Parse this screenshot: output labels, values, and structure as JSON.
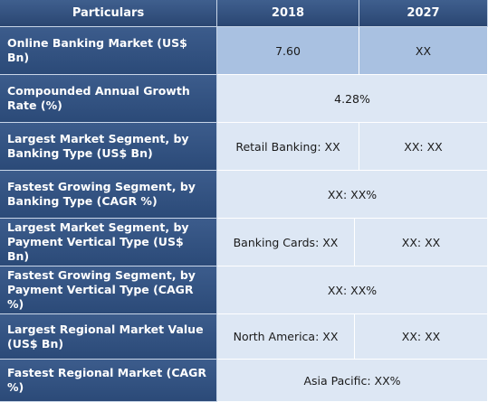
{
  "table": {
    "headers": [
      "Particulars",
      "2018",
      "2027"
    ],
    "rows": [
      {
        "label": "Online Banking Market (US$ Bn)",
        "v2018": "7.60",
        "v2027": "XX"
      },
      {
        "label": "Compounded Annual Growth Rate (%)",
        "merged": "4.28%"
      },
      {
        "label": "Largest Market Segment, by Banking Type (US$ Bn)",
        "v2018": "Retail Banking: XX",
        "v2027": "XX: XX"
      },
      {
        "label": "Fastest Growing Segment, by Banking Type (CAGR %)",
        "merged": "XX: XX%"
      },
      {
        "label": "Largest Market Segment, by Payment Vertical Type (US$ Bn)",
        "v2018": "Banking Cards: XX",
        "v2027": "XX: XX"
      },
      {
        "label": "Fastest Growing Segment, by Payment Vertical Type (CAGR %)",
        "merged": "XX: XX%"
      },
      {
        "label": "Largest Regional Market Value (US$ Bn)",
        "v2018": "North America: XX",
        "v2027": "XX: XX"
      },
      {
        "label": "Fastest Regional Market (CAGR %)",
        "merged": "Asia Pacific: XX%"
      }
    ]
  }
}
